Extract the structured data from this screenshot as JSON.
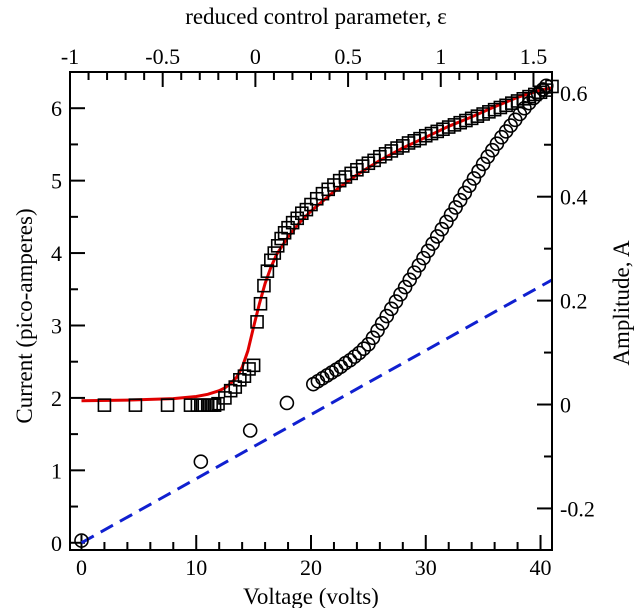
{
  "chart_data": {
    "type": "scatter",
    "title": "",
    "xlabel": "Voltage (volts)",
    "ylabel": "Current (pico-amperes)",
    "x2label": "reduced control parameter, ε",
    "y2label": "Amplitude, A",
    "xlim": [
      -1,
      41
    ],
    "ylim": [
      -0.1,
      6.5
    ],
    "x2lim": [
      -1,
      1.6
    ],
    "y2lim": [
      -0.28,
      0.64
    ],
    "xticks": [
      "0",
      "10",
      "20",
      "30",
      "40"
    ],
    "yticks": [
      "0",
      "1",
      "2",
      "3",
      "4",
      "5",
      "6"
    ],
    "x2ticks": [
      "-1",
      "-0.5",
      "0",
      "0.5",
      "1",
      "1.5"
    ],
    "y2ticks": [
      "-0.2",
      "0",
      "0.2",
      "0.4",
      "0.6"
    ],
    "grid": false,
    "colors": {
      "fit_line": "#e00000",
      "linear_fit": "#1020d0",
      "markers": "#000000"
    },
    "series": [
      {
        "marker": "square",
        "x": [
          2,
          4.7,
          7.5,
          9.5,
          10.1,
          10.4,
          10.7,
          11.0,
          11.3,
          11.6,
          11.9,
          12.5,
          13.0,
          13.4,
          13.8,
          14.2,
          14.6,
          15.0,
          15.3,
          15.6,
          15.9,
          16.2,
          16.5,
          16.8,
          17.1,
          17.4,
          17.7,
          18.0,
          18.4,
          18.8,
          19.2,
          19.6,
          20.0,
          20.5,
          21.0,
          21.5,
          22.0,
          22.5,
          23.0,
          23.5,
          24.0,
          24.5,
          25.0,
          25.5,
          26.0,
          26.5,
          27.0,
          27.5,
          28.0,
          28.5,
          29.0,
          29.5,
          30.0,
          30.5,
          31.0,
          31.5,
          32.0,
          32.5,
          33.0,
          33.5,
          34.0,
          34.5,
          35.0,
          35.5,
          36.0,
          36.5,
          37.0,
          37.5,
          38.0,
          38.5,
          39.0,
          39.5,
          40.0,
          40.5,
          41.0
        ],
        "y": [
          1.9,
          1.9,
          1.9,
          1.9,
          1.9,
          1.9,
          1.9,
          1.9,
          1.9,
          1.9,
          1.92,
          2.0,
          2.1,
          2.15,
          2.25,
          2.3,
          2.4,
          2.45,
          3.05,
          3.3,
          3.55,
          3.75,
          3.9,
          4.0,
          4.1,
          4.2,
          4.28,
          4.35,
          4.42,
          4.48,
          4.55,
          4.6,
          4.67,
          4.75,
          4.82,
          4.88,
          4.94,
          5.0,
          5.05,
          5.1,
          5.15,
          5.2,
          5.24,
          5.28,
          5.33,
          5.37,
          5.41,
          5.45,
          5.48,
          5.52,
          5.55,
          5.58,
          5.62,
          5.65,
          5.68,
          5.71,
          5.74,
          5.77,
          5.8,
          5.83,
          5.86,
          5.89,
          5.92,
          5.95,
          5.98,
          6.01,
          6.04,
          6.07,
          6.1,
          6.13,
          6.16,
          6.19,
          6.22,
          6.25,
          6.3
        ]
      },
      {
        "marker": "circle",
        "x": [
          0,
          10.4,
          14.7,
          17.9,
          20.2,
          20.6,
          21.0,
          21.4,
          21.8,
          22.2,
          22.6,
          23.0,
          23.4,
          23.8,
          24.2,
          24.6,
          25.0,
          25.4,
          25.8,
          26.2,
          26.6,
          27.0,
          27.4,
          27.8,
          28.2,
          28.6,
          29.0,
          29.4,
          29.8,
          30.2,
          30.6,
          31.0,
          31.4,
          31.8,
          32.2,
          32.6,
          33.0,
          33.4,
          33.8,
          34.2,
          34.6,
          35.0,
          35.4,
          35.8,
          36.2,
          36.6,
          37.0,
          37.4,
          37.8,
          38.2,
          38.6,
          39.0,
          39.4,
          39.8,
          40.2,
          40.5
        ],
        "y": [
          0.03,
          1.12,
          1.55,
          1.93,
          2.19,
          2.23,
          2.27,
          2.31,
          2.35,
          2.39,
          2.43,
          2.48,
          2.52,
          2.57,
          2.62,
          2.68,
          2.74,
          2.83,
          2.93,
          3.03,
          3.13,
          3.23,
          3.33,
          3.43,
          3.53,
          3.63,
          3.73,
          3.83,
          3.93,
          4.03,
          4.13,
          4.23,
          4.33,
          4.43,
          4.53,
          4.63,
          4.73,
          4.83,
          4.93,
          5.03,
          5.13,
          5.23,
          5.33,
          5.42,
          5.51,
          5.6,
          5.68,
          5.76,
          5.84,
          5.92,
          6.0,
          6.07,
          6.14,
          6.2,
          6.26,
          6.31
        ]
      },
      {
        "type": "line",
        "style": "solid",
        "x": [
          0,
          4,
          8,
          10,
          11,
          12,
          12.5,
          13,
          13.5,
          14,
          14.5,
          15,
          15.5,
          16,
          16.5,
          17,
          18,
          19,
          20,
          22,
          24,
          26,
          28,
          30,
          32,
          34,
          36,
          38,
          40,
          41
        ],
        "y": [
          1.96,
          1.97,
          1.99,
          2.02,
          2.05,
          2.1,
          2.14,
          2.2,
          2.28,
          2.42,
          2.65,
          2.98,
          3.3,
          3.58,
          3.8,
          3.98,
          4.22,
          4.42,
          4.58,
          4.85,
          5.08,
          5.28,
          5.45,
          5.6,
          5.75,
          5.88,
          6.02,
          6.15,
          6.25,
          6.28
        ]
      },
      {
        "type": "line",
        "style": "dashed",
        "x": [
          0,
          41
        ],
        "y": [
          0.0,
          3.63
        ]
      }
    ]
  }
}
